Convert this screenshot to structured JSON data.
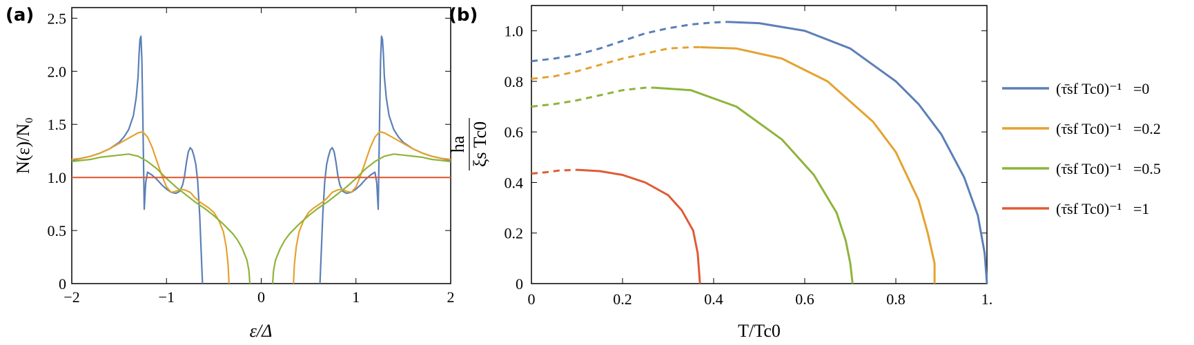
{
  "chart_data": [
    {
      "type": "line",
      "panel_label": "(a)",
      "xlabel": "ε/Δ",
      "ylabel": "N(ε)/N₀",
      "xlim": [
        -2,
        2
      ],
      "ylim": [
        0,
        2.6
      ],
      "xticks": [
        {
          "value": -2,
          "label": "−2"
        },
        {
          "value": -1,
          "label": "−1"
        },
        {
          "value": 0,
          "label": "0"
        },
        {
          "value": 1,
          "label": "1"
        },
        {
          "value": 2,
          "label": "2"
        }
      ],
      "yticks": [
        {
          "value": 0,
          "label": "0"
        },
        {
          "value": 0.5,
          "label": "0.5"
        },
        {
          "value": 1.0,
          "label": "1.0"
        },
        {
          "value": 1.5,
          "label": "1.5"
        },
        {
          "value": 2.0,
          "label": "2.0"
        },
        {
          "value": 2.5,
          "label": "2.5"
        }
      ],
      "series": [
        {
          "name": "(τ̄sf Tc0)⁻¹=0",
          "color": "#5b7fb7",
          "x": [
            0.62,
            0.63,
            0.65,
            0.67,
            0.69,
            0.71,
            0.73,
            0.75,
            0.77,
            0.79,
            0.81,
            0.83,
            0.86,
            0.9,
            0.95,
            1.0,
            1.05,
            1.1,
            1.15,
            1.2,
            1.22,
            1.235,
            1.24,
            1.25,
            1.26,
            1.27,
            1.28,
            1.29,
            1.3,
            1.32,
            1.35,
            1.4,
            1.45,
            1.5,
            1.6,
            1.7,
            1.8,
            1.9,
            2.0
          ],
          "y": [
            0,
            0.22,
            0.65,
            0.96,
            1.12,
            1.2,
            1.26,
            1.28,
            1.24,
            1.14,
            1.01,
            0.93,
            0.87,
            0.85,
            0.86,
            0.89,
            0.93,
            0.98,
            1.02,
            1.05,
            0.95,
            0.7,
            1.0,
            1.6,
            2.1,
            2.33,
            2.3,
            2.15,
            1.95,
            1.75,
            1.58,
            1.45,
            1.38,
            1.33,
            1.27,
            1.23,
            1.2,
            1.18,
            1.16
          ],
          "segments": [
            {
              "from": 0,
              "to": 2,
              "style": "solid"
            }
          ],
          "mirror": true
        },
        {
          "name": "(τ̄sf Tc0)⁻¹=0.2",
          "color": "#e4a22f",
          "x": [
            0.34,
            0.35,
            0.37,
            0.4,
            0.45,
            0.5,
            0.55,
            0.6,
            0.65,
            0.7,
            0.75,
            0.8,
            0.85,
            0.9,
            0.95,
            1.0,
            1.05,
            1.1,
            1.15,
            1.2,
            1.25,
            1.3,
            1.4,
            1.5,
            1.6,
            1.7,
            1.8,
            1.9,
            2.0
          ],
          "y": [
            0,
            0.18,
            0.35,
            0.49,
            0.6,
            0.67,
            0.71,
            0.74,
            0.77,
            0.81,
            0.86,
            0.88,
            0.89,
            0.87,
            0.86,
            0.91,
            1.02,
            1.15,
            1.28,
            1.38,
            1.43,
            1.42,
            1.37,
            1.32,
            1.27,
            1.23,
            1.2,
            1.18,
            1.17
          ],
          "mirror": true
        },
        {
          "name": "(τ̄sf Tc0)⁻¹=0.5",
          "color": "#8db43b",
          "x": [
            0.12,
            0.13,
            0.15,
            0.2,
            0.25,
            0.3,
            0.4,
            0.5,
            0.6,
            0.7,
            0.8,
            0.9,
            1.0,
            1.1,
            1.2,
            1.3,
            1.4,
            1.5,
            1.6,
            1.7,
            1.8,
            1.9,
            2.0
          ],
          "y": [
            0,
            0.12,
            0.22,
            0.33,
            0.41,
            0.47,
            0.56,
            0.64,
            0.71,
            0.77,
            0.84,
            0.91,
            0.99,
            1.08,
            1.15,
            1.2,
            1.22,
            1.21,
            1.2,
            1.19,
            1.17,
            1.16,
            1.15
          ],
          "mirror": true
        },
        {
          "name": "(τ̄sf Tc0)⁻¹=1",
          "color": "#e05a35",
          "x": [
            -2,
            2
          ],
          "y": [
            1.0,
            1.0
          ],
          "mirror": false
        }
      ]
    },
    {
      "type": "line",
      "panel_label": "(b)",
      "xlabel": "T/Tc0",
      "ylabel_num": "ha",
      "ylabel_den": "ξs Tc0",
      "xlim": [
        0,
        1.0
      ],
      "ylim": [
        0,
        1.1
      ],
      "xticks": [
        {
          "value": 0,
          "label": "0"
        },
        {
          "value": 0.2,
          "label": "0.2"
        },
        {
          "value": 0.4,
          "label": "0.4"
        },
        {
          "value": 0.6,
          "label": "0.6"
        },
        {
          "value": 0.8,
          "label": "0.8"
        },
        {
          "value": 1.0,
          "label": "1."
        }
      ],
      "yticks": [
        {
          "value": 0,
          "label": "0"
        },
        {
          "value": 0.2,
          "label": "0.2"
        },
        {
          "value": 0.4,
          "label": "0.4"
        },
        {
          "value": 0.6,
          "label": "0.6"
        },
        {
          "value": 0.8,
          "label": "0.8"
        },
        {
          "value": 1.0,
          "label": "1.0"
        }
      ],
      "legend_position": "right",
      "series": [
        {
          "name_base": "(τ̄sf Tc0)⁻¹",
          "name_value": "=0",
          "color": "#5b7fb7",
          "dashed": {
            "x": [
              0,
              0.05,
              0.1,
              0.15,
              0.2,
              0.25,
              0.3,
              0.35,
              0.4,
              0.43
            ],
            "y": [
              0.88,
              0.89,
              0.905,
              0.93,
              0.96,
              0.99,
              1.01,
              1.025,
              1.033,
              1.035
            ]
          },
          "solid": {
            "x": [
              0.43,
              0.5,
              0.6,
              0.7,
              0.8,
              0.85,
              0.9,
              0.95,
              0.98,
              0.995,
              1.0
            ],
            "y": [
              1.035,
              1.03,
              1.0,
              0.93,
              0.8,
              0.71,
              0.59,
              0.42,
              0.27,
              0.12,
              0
            ]
          }
        },
        {
          "name_base": "(τ̄sf Tc0)⁻¹",
          "name_value": "=0.2",
          "color": "#e4a22f",
          "dashed": {
            "x": [
              0,
              0.05,
              0.1,
              0.15,
              0.2,
              0.25,
              0.3,
              0.35,
              0.37
            ],
            "y": [
              0.81,
              0.82,
              0.84,
              0.865,
              0.89,
              0.91,
              0.93,
              0.935,
              0.935
            ]
          },
          "solid": {
            "x": [
              0.37,
              0.45,
              0.55,
              0.65,
              0.75,
              0.8,
              0.85,
              0.87,
              0.885,
              0.885
            ],
            "y": [
              0.935,
              0.93,
              0.89,
              0.8,
              0.64,
              0.52,
              0.33,
              0.2,
              0.08,
              0
            ]
          }
        },
        {
          "name_base": "(τ̄sf Tc0)⁻¹",
          "name_value": "=0.5",
          "color": "#8db43b",
          "dashed": {
            "x": [
              0,
              0.05,
              0.1,
              0.15,
              0.2,
              0.25,
              0.27
            ],
            "y": [
              0.7,
              0.71,
              0.725,
              0.745,
              0.765,
              0.775,
              0.775
            ]
          },
          "solid": {
            "x": [
              0.27,
              0.35,
              0.45,
              0.55,
              0.62,
              0.67,
              0.69,
              0.7,
              0.705
            ],
            "y": [
              0.775,
              0.765,
              0.7,
              0.57,
              0.43,
              0.28,
              0.17,
              0.08,
              0
            ]
          }
        },
        {
          "name_base": "(τ̄sf Tc0)⁻¹",
          "name_value": "=1",
          "color": "#e05a35",
          "dashed": {
            "x": [
              0,
              0.03,
              0.06,
              0.1
            ],
            "y": [
              0.435,
              0.44,
              0.447,
              0.45
            ]
          },
          "solid": {
            "x": [
              0.1,
              0.15,
              0.2,
              0.25,
              0.3,
              0.33,
              0.355,
              0.365,
              0.37
            ],
            "y": [
              0.45,
              0.445,
              0.43,
              0.4,
              0.35,
              0.29,
              0.21,
              0.12,
              0
            ]
          }
        }
      ]
    }
  ]
}
